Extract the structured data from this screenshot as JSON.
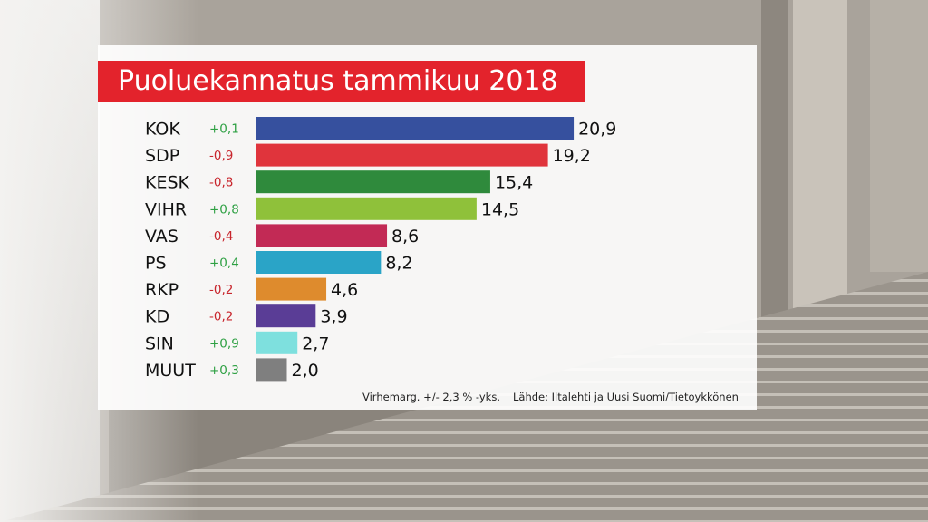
{
  "chart_data": {
    "type": "bar",
    "orientation": "horizontal",
    "title": "Puoluekannatus tammikuu 2018",
    "categories": [
      "KOK",
      "SDP",
      "KESK",
      "VIHR",
      "VAS",
      "PS",
      "RKP",
      "KD",
      "SIN",
      "MUUT"
    ],
    "values": [
      20.9,
      19.2,
      15.4,
      14.5,
      8.6,
      8.2,
      4.6,
      3.9,
      2.7,
      2.0
    ],
    "value_labels": [
      "20,9",
      "19,2",
      "15,4",
      "14,5",
      "8,6",
      "8,2",
      "4,6",
      "3,9",
      "2,7",
      "2,0"
    ],
    "changes": [
      "+0,1",
      "-0,9",
      "-0,8",
      "+0,8",
      "-0,4",
      "+0,4",
      "-0,2",
      "-0,2",
      "+0,9",
      "+0,3"
    ],
    "colors": [
      "#36509e",
      "#e0343c",
      "#2f8a3c",
      "#8fc13a",
      "#c22a55",
      "#2aa4c7",
      "#de8b2d",
      "#5a3d96",
      "#7ee0de",
      "#7f7f7f"
    ],
    "change_colors": {
      "positive": "#2ea043",
      "negative": "#c8252c"
    },
    "grid": false,
    "legend": "none"
  },
  "footer": {
    "margin_note": "Virhemarg. +/- 2,3 % -yks.",
    "source": "Lähde: Iltalehti ja Uusi Suomi/Tietoykkönen"
  }
}
